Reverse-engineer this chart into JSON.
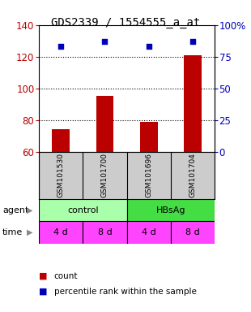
{
  "title": "GDS2339 / 1554555_a_at",
  "bar_values": [
    74,
    95,
    79,
    121
  ],
  "percentile_values": [
    83,
    87,
    83,
    87
  ],
  "sample_labels": [
    "GSM101530",
    "GSM101700",
    "GSM101696",
    "GSM101704"
  ],
  "ylim_left": [
    60,
    140
  ],
  "ylim_right": [
    0,
    100
  ],
  "yticks_left": [
    60,
    80,
    100,
    120,
    140
  ],
  "yticks_right": [
    0,
    25,
    50,
    75,
    100
  ],
  "yticklabels_right": [
    "0",
    "25",
    "50",
    "75",
    "100%"
  ],
  "bar_color": "#bb0000",
  "dot_color": "#0000bb",
  "agent_labels": [
    "control",
    "HBsAg"
  ],
  "agent_colors": [
    "#aaffaa",
    "#44dd44"
  ],
  "time_labels": [
    "4 d",
    "8 d",
    "4 d",
    "8 d"
  ],
  "time_color": "#ff44ff",
  "background_color": "#ffffff",
  "sample_bg_color": "#cccccc",
  "title_fontsize": 10,
  "axis_fontsize": 8.5,
  "tick_label_fontsize": 8.5
}
